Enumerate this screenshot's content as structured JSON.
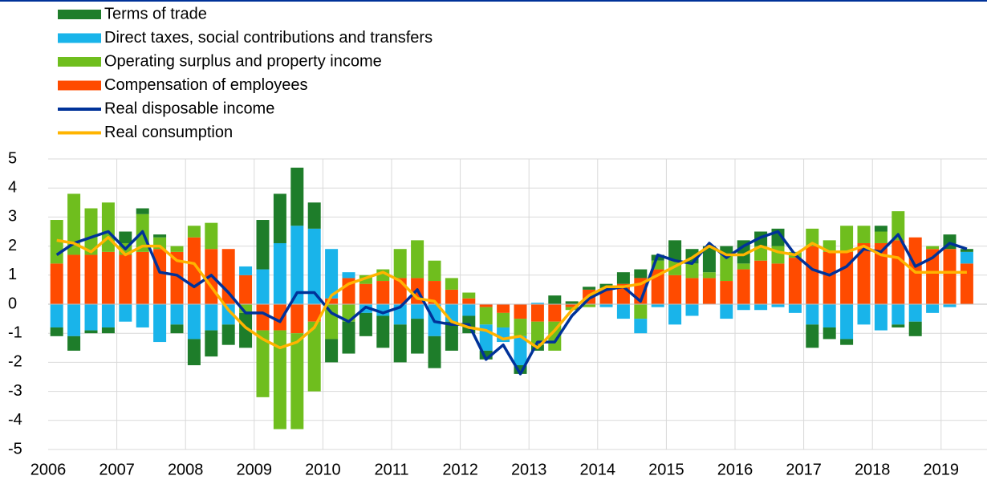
{
  "chart_data": {
    "type": "bar",
    "stacked": true,
    "categories": [
      "2006",
      null,
      null,
      null,
      "2007",
      null,
      null,
      null,
      "2008",
      null,
      null,
      null,
      "2009",
      null,
      null,
      null,
      "2010",
      null,
      null,
      null,
      "2011",
      null,
      null,
      null,
      "2012",
      null,
      null,
      null,
      "2013",
      null,
      null,
      null,
      "2014",
      null,
      null,
      null,
      "2015",
      null,
      null,
      null,
      "2016",
      null,
      null,
      null,
      "2017",
      null,
      null,
      null,
      "2018",
      null,
      null,
      null,
      "2019",
      null
    ],
    "series": [
      {
        "name": "Compensation of employees",
        "color": "#ff4b00",
        "values": [
          1.4,
          1.7,
          1.7,
          1.8,
          1.7,
          1.8,
          1.9,
          1.8,
          2.3,
          1.9,
          1.9,
          1.0,
          -0.9,
          -0.9,
          -1.0,
          -0.6,
          0.2,
          0.9,
          0.7,
          0.8,
          0.9,
          0.9,
          0.8,
          0.5,
          0.2,
          -0.1,
          -0.3,
          -0.5,
          -0.6,
          -0.6,
          -0.1,
          0.5,
          0.5,
          0.7,
          0.9,
          1.2,
          1.0,
          0.9,
          0.9,
          0.8,
          1.2,
          1.5,
          1.4,
          1.6,
          2.0,
          1.8,
          1.8,
          2.1,
          2.1,
          2.2,
          2.3,
          1.9,
          1.9,
          1.4
        ]
      },
      {
        "name": "Operating surplus and property income",
        "color": "#6fbe1e",
        "values": [
          1.5,
          2.1,
          1.6,
          1.7,
          0.4,
          1.3,
          0.4,
          0.2,
          0.4,
          0.9,
          0,
          -0.3,
          -2.3,
          -3.4,
          -3.3,
          -2.4,
          -1.2,
          -0.6,
          0.3,
          0.4,
          1.0,
          1.3,
          0.7,
          0.4,
          0.2,
          -0.6,
          -0.5,
          -0.6,
          -0.8,
          -1.0,
          -0.1,
          -0.1,
          0,
          0,
          -0.5,
          0.3,
          0.5,
          0.5,
          0.2,
          0.9,
          0.2,
          0.5,
          0.6,
          0.2,
          0.6,
          0.4,
          0.9,
          0.6,
          0.4,
          1.0,
          0,
          0.1,
          0,
          0
        ]
      },
      {
        "name": "Direct taxes, social contributions and transfers",
        "color": "#19b4ea",
        "values": [
          -0.8,
          -1.1,
          -0.9,
          -0.8,
          -0.6,
          -0.8,
          -1.3,
          -0.7,
          -1.2,
          -0.9,
          -0.7,
          0.3,
          1.2,
          2.1,
          2.7,
          2.6,
          1.7,
          0.2,
          -0.3,
          -0.4,
          -0.7,
          -0.5,
          -1.1,
          -0.6,
          -0.4,
          -0.9,
          -0.5,
          -1.0,
          0.05,
          0,
          0,
          0,
          -0.1,
          -0.5,
          -0.5,
          -0.1,
          -0.7,
          -0.4,
          0,
          -0.5,
          -0.2,
          -0.2,
          -0.1,
          -0.3,
          -0.7,
          -0.8,
          -1.2,
          -0.7,
          -0.9,
          -0.7,
          -0.6,
          -0.3,
          -0.1,
          0.4
        ]
      },
      {
        "name": "Terms of trade",
        "color": "#1e7d2a",
        "values": [
          -0.3,
          -0.5,
          -0.1,
          -0.2,
          0.4,
          0.2,
          0.1,
          -0.3,
          -0.9,
          -0.9,
          -0.7,
          -1.2,
          1.7,
          1.7,
          2.0,
          0.9,
          -0.8,
          -1.1,
          -0.8,
          -1.1,
          -1.3,
          -1.2,
          -1.1,
          -1.0,
          -0.6,
          -0.3,
          0,
          -0.3,
          -0.2,
          0.3,
          0.1,
          0.1,
          0.2,
          0.4,
          0.3,
          0.2,
          0.7,
          0.5,
          0.9,
          0.3,
          0.8,
          0.5,
          0.6,
          0,
          -0.8,
          -0.4,
          -0.2,
          0,
          0.2,
          -0.1,
          -0.5,
          0,
          0.5,
          0.1
        ]
      },
      {
        "name": "Real disposable income",
        "color": "#003299",
        "type": "line",
        "values": [
          1.7,
          2.1,
          2.3,
          2.5,
          1.9,
          2.5,
          1.1,
          1.0,
          0.6,
          1.0,
          0.4,
          -0.3,
          -0.3,
          -0.6,
          0.4,
          0.4,
          -0.3,
          -0.6,
          -0.1,
          -0.3,
          -0.1,
          0.5,
          -0.6,
          -0.7,
          -0.7,
          -1.9,
          -1.4,
          -2.4,
          -1.3,
          -1.3,
          -0.4,
          0.2,
          0.5,
          0.6,
          0.1,
          1.7,
          1.5,
          1.4,
          2.1,
          1.6,
          2.0,
          2.3,
          2.5,
          1.7,
          1.2,
          1.0,
          1.3,
          1.9,
          1.8,
          2.4,
          1.3,
          1.6,
          2.1,
          1.9
        ]
      },
      {
        "name": "Real consumption",
        "color": "#ffb400",
        "type": "line",
        "values": [
          2.2,
          2.1,
          1.8,
          2.3,
          1.7,
          2.0,
          2.0,
          1.5,
          1.4,
          0.6,
          -0.2,
          -0.8,
          -1.2,
          -1.5,
          -1.3,
          -0.8,
          0.3,
          0.7,
          0.9,
          1.1,
          0.8,
          0.2,
          0.1,
          -0.6,
          -0.8,
          -0.9,
          -1.2,
          -1.1,
          -1.5,
          -0.9,
          -0.2,
          0.3,
          0.6,
          0.6,
          0.7,
          1.0,
          1.3,
          1.6,
          2.0,
          1.7,
          1.7,
          2.0,
          1.8,
          1.7,
          2.1,
          1.8,
          1.8,
          2.0,
          1.7,
          1.6,
          1.1,
          1.1,
          1.1,
          1.1
        ]
      }
    ],
    "ylim": [
      -5,
      5
    ],
    "yticks": [
      -5,
      -4,
      -3,
      -2,
      -1,
      0,
      1,
      2,
      3,
      4,
      5
    ],
    "grid": true,
    "legend": "top-left"
  }
}
